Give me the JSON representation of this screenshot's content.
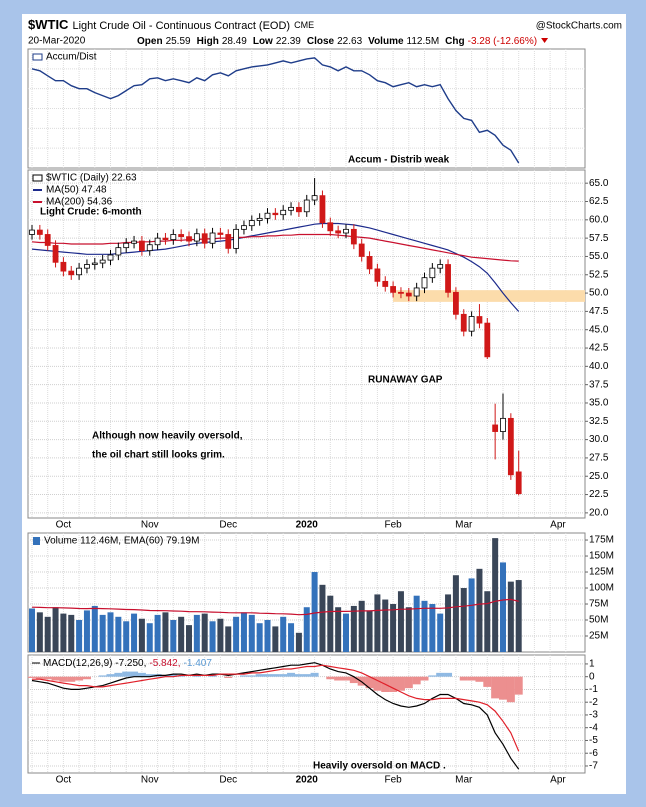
{
  "header": {
    "symbol": "$WTIC",
    "name": "Light Crude Oil - Continuous Contract (EOD)",
    "exchange": "CME",
    "source": "@StockCharts.com",
    "date": "20-Mar-2020",
    "change_color": "#cc0000",
    "quote": [
      {
        "label": "Open",
        "value": 25.59
      },
      {
        "label": "High",
        "value": 28.49
      },
      {
        "label": "Low",
        "value": 22.39
      },
      {
        "label": "Close",
        "value": 22.63
      },
      {
        "label": "Volume",
        "value": "112.5M"
      },
      {
        "label": "Chg",
        "value": "-3.28 (-12.66%)"
      }
    ]
  },
  "chart_data": [
    {
      "type": "line",
      "name": "Accum/Dist",
      "color": "#1f3d8a",
      "ylim": [
        0,
        120
      ],
      "annotation_color": "#3f4fae",
      "annotations": [
        "Accum - Distrib weak"
      ],
      "values": [
        100,
        98,
        93,
        88,
        88,
        83,
        80,
        80,
        76,
        73,
        70,
        73,
        78,
        83,
        84,
        90,
        91,
        88,
        90,
        88,
        86,
        91,
        88,
        94,
        96,
        93,
        98,
        100,
        102,
        103,
        104,
        106,
        108,
        106,
        108,
        110,
        111,
        104,
        102,
        98,
        102,
        98,
        98,
        94,
        88,
        86,
        82,
        84,
        86,
        82,
        84,
        82,
        84,
        70,
        58,
        50,
        48,
        36,
        38,
        33,
        23,
        18,
        5
      ]
    },
    {
      "type": "candlestick",
      "name": "$WTIC (Daily) 22.63",
      "up_color": "#000000",
      "down_color": "#d01818",
      "annotation_color": "#3f4fae",
      "ylim": [
        19.3,
        66.8
      ],
      "yticks": [
        {
          "value": 20,
          "label": "20.0"
        },
        22.5,
        {
          "value": 25,
          "label": "25.0"
        },
        27.5,
        {
          "value": 30,
          "label": "30.0"
        },
        32.5,
        {
          "value": 35,
          "label": "35.0"
        },
        37.5,
        {
          "value": 40,
          "label": "40.0"
        },
        42.5,
        {
          "value": 45,
          "label": "45.0"
        },
        47.5,
        {
          "value": 50,
          "label": "50.0"
        },
        52.5,
        {
          "value": 55,
          "label": "55.0"
        },
        57.5,
        {
          "value": 60,
          "label": "60.0"
        },
        62.5,
        {
          "value": 65,
          "label": "65.0"
        }
      ],
      "band": {
        "from": 48.8,
        "to": 50.4,
        "color": "#fcdcab"
      },
      "annotations": [
        "Light Crude: 6-month",
        "RUNAWAY GAP",
        "Although now heavily oversold,",
        "the oil chart still looks grim."
      ],
      "categories": [
        null,
        null,
        null,
        null,
        "Oct",
        null,
        null,
        null,
        null,
        null,
        null,
        null,
        null,
        null,
        null,
        "Nov",
        null,
        null,
        null,
        null,
        null,
        null,
        null,
        null,
        null,
        "Dec",
        null,
        null,
        null,
        null,
        null,
        null,
        null,
        null,
        null,
        "2020",
        null,
        null,
        null,
        null,
        null,
        null,
        null,
        null,
        null,
        null,
        "Feb",
        null,
        null,
        null,
        null,
        null,
        null,
        null,
        null,
        "Mar",
        null,
        null,
        null,
        null,
        null,
        null,
        null,
        null,
        null,
        null,
        null,
        "Apr",
        null,
        null
      ],
      "open": [
        58.0,
        58.6,
        58.0,
        56.5,
        54.2,
        53.0,
        52.5,
        53.4,
        53.9,
        54.1,
        54.5,
        55.2,
        56.2,
        56.8,
        57.1,
        55.8,
        56.6,
        57.5,
        57.3,
        58.0,
        57.7,
        57.1,
        58.1,
        56.8,
        58.2,
        58.0,
        56.1,
        58.7,
        59.2,
        59.9,
        60.2,
        60.9,
        60.7,
        61.3,
        61.7,
        61.1,
        62.7,
        63.3,
        59.6,
        58.5,
        58.2,
        58.7,
        56.7,
        55.0,
        53.3,
        51.6,
        50.9,
        50.1,
        50.0,
        49.6,
        50.7,
        52.1,
        53.4,
        53.9,
        50.1,
        47.1,
        44.8,
        46.8,
        45.9,
        32.0,
        31.1,
        32.9,
        25.59,
        null,
        null,
        null,
        null,
        null,
        null,
        null
      ],
      "high": [
        59.3,
        59.3,
        58.7,
        57.2,
        54.9,
        53.7,
        54.1,
        54.6,
        54.8,
        55.2,
        55.9,
        56.9,
        57.5,
        57.8,
        57.8,
        57.3,
        58.2,
        58.2,
        58.7,
        58.7,
        58.4,
        58.8,
        58.8,
        58.9,
        58.9,
        58.7,
        59.4,
        59.9,
        60.6,
        60.9,
        61.6,
        61.6,
        62.0,
        62.4,
        62.4,
        63.4,
        65.7,
        64.0,
        60.3,
        59.2,
        59.4,
        59.4,
        57.4,
        55.7,
        54.0,
        52.3,
        51.6,
        50.8,
        50.7,
        51.4,
        52.8,
        54.1,
        54.6,
        54.6,
        50.8,
        47.8,
        47.5,
        48.5,
        46.6,
        34.9,
        36.3,
        33.6,
        28.49,
        null,
        null,
        null,
        null,
        null,
        null,
        null
      ],
      "low": [
        57.3,
        57.3,
        55.8,
        53.5,
        52.3,
        51.8,
        51.8,
        52.7,
        53.2,
        53.4,
        53.8,
        54.5,
        55.5,
        56.1,
        55.1,
        55.1,
        55.9,
        56.6,
        56.6,
        57.0,
        56.4,
        56.4,
        56.1,
        56.1,
        57.3,
        55.4,
        55.4,
        58.0,
        58.5,
        59.2,
        59.5,
        60.0,
        60.0,
        60.6,
        60.4,
        60.4,
        62.0,
        58.9,
        57.8,
        57.5,
        57.5,
        56.0,
        54.3,
        52.6,
        50.9,
        50.2,
        49.4,
        49.3,
        48.9,
        48.9,
        50.0,
        51.4,
        52.7,
        49.4,
        46.4,
        44.1,
        44.1,
        45.2,
        41.0,
        27.3,
        30.0,
        24.5,
        22.39,
        null,
        null,
        null,
        null,
        null,
        null,
        null
      ],
      "close": [
        58.6,
        58.0,
        56.5,
        54.2,
        53.0,
        52.5,
        53.4,
        53.9,
        54.1,
        54.5,
        55.2,
        56.2,
        56.8,
        57.1,
        55.8,
        56.6,
        57.5,
        57.3,
        58.0,
        57.7,
        57.1,
        58.1,
        56.8,
        58.2,
        58.0,
        56.1,
        58.7,
        59.2,
        59.9,
        60.2,
        60.9,
        60.7,
        61.3,
        61.7,
        61.1,
        62.7,
        63.3,
        59.6,
        58.5,
        58.2,
        58.7,
        56.7,
        55.0,
        53.3,
        51.6,
        50.9,
        50.1,
        50.0,
        49.6,
        50.7,
        52.1,
        53.4,
        53.9,
        50.1,
        47.1,
        44.8,
        46.8,
        45.9,
        41.3,
        31.1,
        32.9,
        25.2,
        22.63,
        null,
        null,
        null,
        null,
        null,
        null,
        null
      ],
      "series": [
        {
          "name": "MA(50) 47.48",
          "color": "#1c2a8c",
          "values": [
            56.0,
            55.9,
            55.8,
            55.7,
            55.6,
            55.5,
            55.4,
            55.3,
            55.3,
            55.3,
            55.3,
            55.4,
            55.5,
            55.6,
            55.7,
            55.8,
            55.9,
            56.0,
            56.2,
            56.4,
            56.6,
            56.8,
            56.9,
            57.0,
            57.1,
            57.2,
            57.4,
            57.6,
            57.8,
            58.0,
            58.2,
            58.4,
            58.6,
            58.8,
            59.0,
            59.2,
            59.4,
            59.5,
            59.5,
            59.5,
            59.4,
            59.3,
            59.1,
            58.9,
            58.6,
            58.3,
            58.0,
            57.7,
            57.4,
            57.1,
            56.8,
            56.5,
            56.2,
            55.9,
            55.4,
            54.9,
            54.3,
            53.6,
            52.7,
            51.4,
            50.0,
            48.7,
            47.48,
            null,
            null,
            null,
            null,
            null,
            null,
            null
          ]
        },
        {
          "name": "MA(200) 54.36",
          "color": "#c8102e",
          "values": [
            57.0,
            56.9,
            56.9,
            56.8,
            56.8,
            56.7,
            56.7,
            56.7,
            56.7,
            56.7,
            56.8,
            56.8,
            56.9,
            56.9,
            57.0,
            57.0,
            57.1,
            57.1,
            57.2,
            57.2,
            57.3,
            57.3,
            57.4,
            57.4,
            57.5,
            57.5,
            57.6,
            57.6,
            57.7,
            57.7,
            57.8,
            57.8,
            57.9,
            57.9,
            58.0,
            58.0,
            58.0,
            58.0,
            58.0,
            57.9,
            57.8,
            57.7,
            57.6,
            57.5,
            57.3,
            57.1,
            56.9,
            56.7,
            56.5,
            56.3,
            56.1,
            55.9,
            55.7,
            55.5,
            55.3,
            55.1,
            54.9,
            54.8,
            54.7,
            54.6,
            54.5,
            54.4,
            54.36,
            null,
            null,
            null,
            null,
            null,
            null,
            null
          ]
        }
      ]
    },
    {
      "type": "bar",
      "legend": "Volume 112.46M, EMA(60) 79.19M",
      "up_color": "#3472bb",
      "down_color": "#3a4658",
      "ylim": [
        0,
        186
      ],
      "yticks": [
        {
          "value": 25,
          "label": "25M"
        },
        {
          "value": 50,
          "label": "50M"
        },
        {
          "value": 75,
          "label": "75M"
        },
        {
          "value": 100,
          "label": "100M"
        },
        {
          "value": 125,
          "label": "125M"
        },
        {
          "value": 150,
          "label": "150M"
        },
        {
          "value": 175,
          "label": "175M"
        }
      ],
      "values": [
        68,
        62,
        55,
        70,
        60,
        58,
        50,
        65,
        72,
        58,
        62,
        55,
        48,
        60,
        52,
        45,
        58,
        62,
        50,
        55,
        42,
        58,
        60,
        48,
        52,
        40,
        55,
        62,
        58,
        45,
        50,
        40,
        55,
        45,
        30,
        70,
        125,
        105,
        88,
        70,
        60,
        72,
        80,
        65,
        90,
        82,
        75,
        95,
        70,
        88,
        80,
        75,
        60,
        90,
        120,
        100,
        115,
        130,
        95,
        178,
        140,
        110,
        112.46
      ],
      "series": [
        {
          "color": "#c8102e",
          "values": [
            70,
            69.7,
            69.2,
            69.2,
            68.9,
            68.6,
            68.0,
            67.9,
            68.1,
            67.8,
            67.6,
            67.1,
            66.4,
            66.2,
            65.6,
            64.9,
            64.7,
            64.6,
            64.1,
            63.8,
            63.1,
            63.0,
            62.9,
            62.4,
            62.1,
            61.4,
            61.2,
            61.3,
            61.2,
            60.7,
            60.4,
            59.8,
            59.7,
            59.2,
            58.3,
            58.7,
            60.9,
            62.4,
            63.3,
            63.5,
            63.4,
            63.7,
            64.2,
            64.3,
            65.1,
            65.7,
            66.0,
            66.9,
            67.0,
            67.7,
            68.3,
            68.5,
            68.3,
            69.0,
            70.6,
            71.6,
            73.0,
            74.9,
            75.6,
            79.2,
            81.2,
            82.2,
            79.19
          ]
        }
      ]
    },
    {
      "type": "line",
      "annotation_color": "#3f4fae",
      "legend": [
        {
          "text": "MACD(12,26,9) -7.250,",
          "color": "#000000"
        },
        {
          "text": "-5.842,",
          "color": "#c8102e"
        },
        {
          "text": "-1.407",
          "color": "#5b9bd5"
        }
      ],
      "annotations": [
        "Heavily oversold on MACD ."
      ],
      "ylim": [
        -7.55,
        1.7
      ],
      "yticks": [
        1,
        0,
        -1,
        -2,
        -3,
        -4,
        -5,
        -6,
        -7
      ],
      "categories": [
        null,
        null,
        null,
        null,
        "Oct",
        null,
        null,
        null,
        null,
        null,
        null,
        null,
        null,
        null,
        null,
        "Nov",
        null,
        null,
        null,
        null,
        null,
        null,
        null,
        null,
        null,
        "Dec",
        null,
        null,
        null,
        null,
        null,
        null,
        null,
        null,
        null,
        "2020",
        null,
        null,
        null,
        null,
        null,
        null,
        null,
        null,
        null,
        null,
        "Feb",
        null,
        null,
        null,
        null,
        null,
        null,
        null,
        null,
        "Mar",
        null,
        null,
        null,
        null,
        null,
        null,
        null,
        null,
        null,
        null,
        null,
        "Apr",
        null,
        null
      ],
      "histogram": {
        "up_color": "#8fb9e3",
        "down_color": "#ec8f8f",
        "values": [
          -0.1,
          -0.2,
          -0.2,
          -0.3,
          -0.4,
          -0.4,
          -0.3,
          -0.2,
          0.0,
          0.1,
          0.2,
          0.3,
          0.4,
          0.4,
          0.3,
          0.2,
          0.2,
          0.1,
          0.2,
          0.1,
          0.0,
          0.1,
          0.0,
          0.1,
          0.0,
          -0.1,
          0.0,
          0.1,
          0.1,
          0.2,
          0.2,
          0.2,
          0.2,
          0.3,
          0.2,
          0.2,
          0.3,
          0.0,
          -0.2,
          -0.3,
          -0.3,
          -0.5,
          -0.7,
          -0.9,
          -1.1,
          -1.2,
          -1.2,
          -1.1,
          -0.9,
          -0.6,
          -0.3,
          0.1,
          0.3,
          0.3,
          0.0,
          -0.3,
          -0.3,
          -0.4,
          -0.8,
          -1.7,
          -1.8,
          -2.0,
          -1.407,
          null,
          null,
          null,
          null,
          null,
          null,
          null
        ]
      },
      "series": [
        {
          "color": "#000000",
          "values": [
            -0.3,
            -0.4,
            -0.5,
            -0.7,
            -0.9,
            -1.0,
            -1.0,
            -0.9,
            -0.8,
            -0.7,
            -0.5,
            -0.3,
            -0.1,
            0.0,
            0.0,
            0.0,
            0.1,
            0.1,
            0.2,
            0.2,
            0.1,
            0.2,
            0.1,
            0.2,
            0.2,
            0.1,
            0.2,
            0.3,
            0.4,
            0.5,
            0.6,
            0.7,
            0.8,
            0.9,
            0.9,
            1.0,
            1.1,
            0.9,
            0.6,
            0.4,
            0.3,
            0.0,
            -0.4,
            -0.9,
            -1.4,
            -1.8,
            -2.1,
            -2.3,
            -2.4,
            -2.3,
            -2.1,
            -1.7,
            -1.4,
            -1.4,
            -1.7,
            -2.1,
            -2.2,
            -2.4,
            -3.0,
            -4.4,
            -5.3,
            -6.4,
            -7.25,
            null,
            null,
            null,
            null,
            null,
            null,
            null
          ]
        },
        {
          "color": "#e0202a",
          "values": [
            -0.2,
            -0.2,
            -0.3,
            -0.4,
            -0.5,
            -0.6,
            -0.7,
            -0.7,
            -0.8,
            -0.8,
            -0.7,
            -0.6,
            -0.5,
            -0.4,
            -0.3,
            -0.2,
            -0.1,
            0.0,
            0.0,
            0.1,
            0.1,
            0.1,
            0.1,
            0.1,
            0.2,
            0.2,
            0.2,
            0.2,
            0.3,
            0.3,
            0.4,
            0.5,
            0.6,
            0.6,
            0.7,
            0.8,
            0.8,
            0.9,
            0.8,
            0.7,
            0.6,
            0.5,
            0.3,
            0.0,
            -0.3,
            -0.6,
            -0.9,
            -1.2,
            -1.5,
            -1.7,
            -1.8,
            -1.8,
            -1.7,
            -1.7,
            -1.7,
            -1.8,
            -1.9,
            -2.0,
            -2.2,
            -2.7,
            -3.5,
            -4.4,
            -5.842,
            null,
            null,
            null,
            null,
            null,
            null,
            null
          ]
        }
      ]
    }
  ]
}
